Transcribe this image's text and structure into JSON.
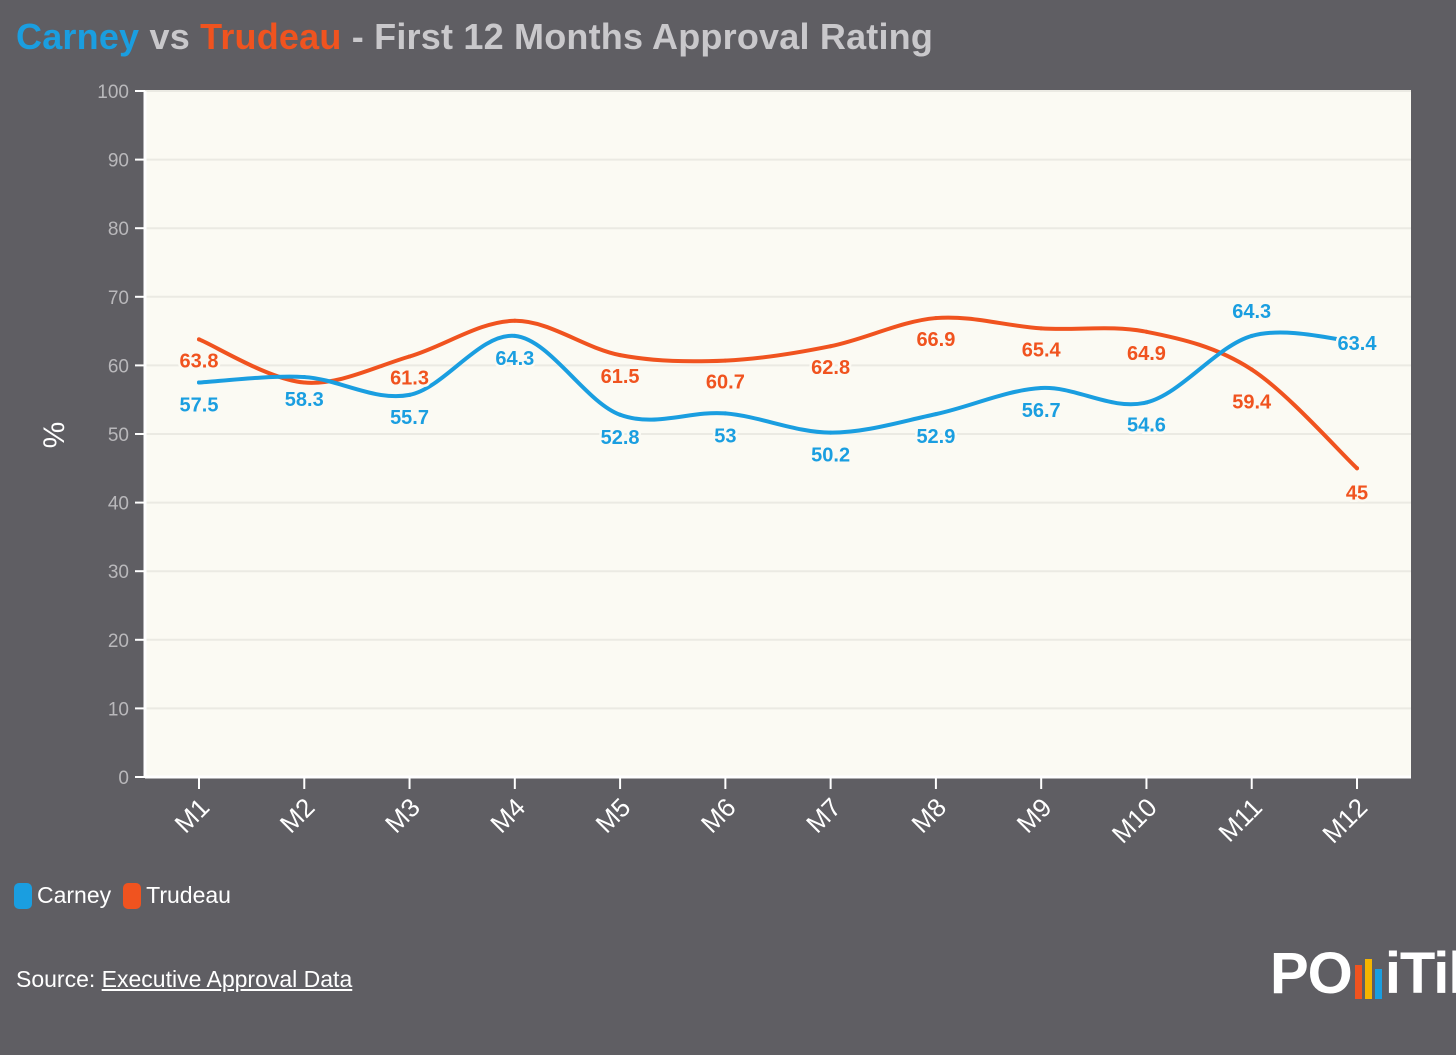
{
  "title": {
    "part1": "Carney",
    "part2": " vs ",
    "part3": "Trudeau",
    "part4": " - First 12 Months Approval Rating"
  },
  "colors": {
    "carney": "#1a9ee0",
    "trudeau": "#f0531f",
    "plot_bg": "#fbfaf3",
    "page_bg": "#5f5e63"
  },
  "legend": {
    "carney": "Carney",
    "trudeau": "Trudeau",
    "placement": "bottom-left"
  },
  "source": {
    "label": "Source: ",
    "link_text": "Executive Approval Data"
  },
  "logo": {
    "left": "PO",
    "right": "iTik",
    "bar_colors": [
      "#f0531f",
      "#f5b400",
      "#1a9ee0"
    ]
  },
  "chart_data": {
    "type": "line",
    "title": "Carney vs Trudeau - First 12 Months Approval Rating",
    "xlabel": "",
    "ylabel": "%",
    "ylim": [
      0,
      100
    ],
    "yticks": [
      0,
      10,
      20,
      30,
      40,
      50,
      60,
      70,
      80,
      90,
      100
    ],
    "grid": true,
    "categories": [
      "M1",
      "M2",
      "M3",
      "M4",
      "M5",
      "M6",
      "M7",
      "M8",
      "M9",
      "M10",
      "M11",
      "M12"
    ],
    "series": [
      {
        "name": "Carney",
        "color": "#1a9ee0",
        "values": [
          57.5,
          58.3,
          55.7,
          64.3,
          52.8,
          53,
          50.2,
          52.9,
          56.7,
          54.6,
          64.3,
          63.4
        ],
        "labels": [
          "57.5",
          "58.3",
          "55.7",
          "64.3",
          "52.8",
          "53",
          "50.2",
          "52.9",
          "56.7",
          "54.6",
          "64.3",
          "63.4"
        ]
      },
      {
        "name": "Trudeau",
        "color": "#f0531f",
        "values": [
          63.8,
          57.5,
          61.3,
          66.5,
          61.5,
          60.7,
          62.8,
          66.9,
          65.4,
          64.9,
          59.4,
          45
        ],
        "labels": [
          "63.8",
          null,
          "61.3",
          null,
          "61.5",
          "60.7",
          "62.8",
          "66.9",
          "65.4",
          "64.9",
          "59.4",
          "45"
        ]
      }
    ]
  }
}
